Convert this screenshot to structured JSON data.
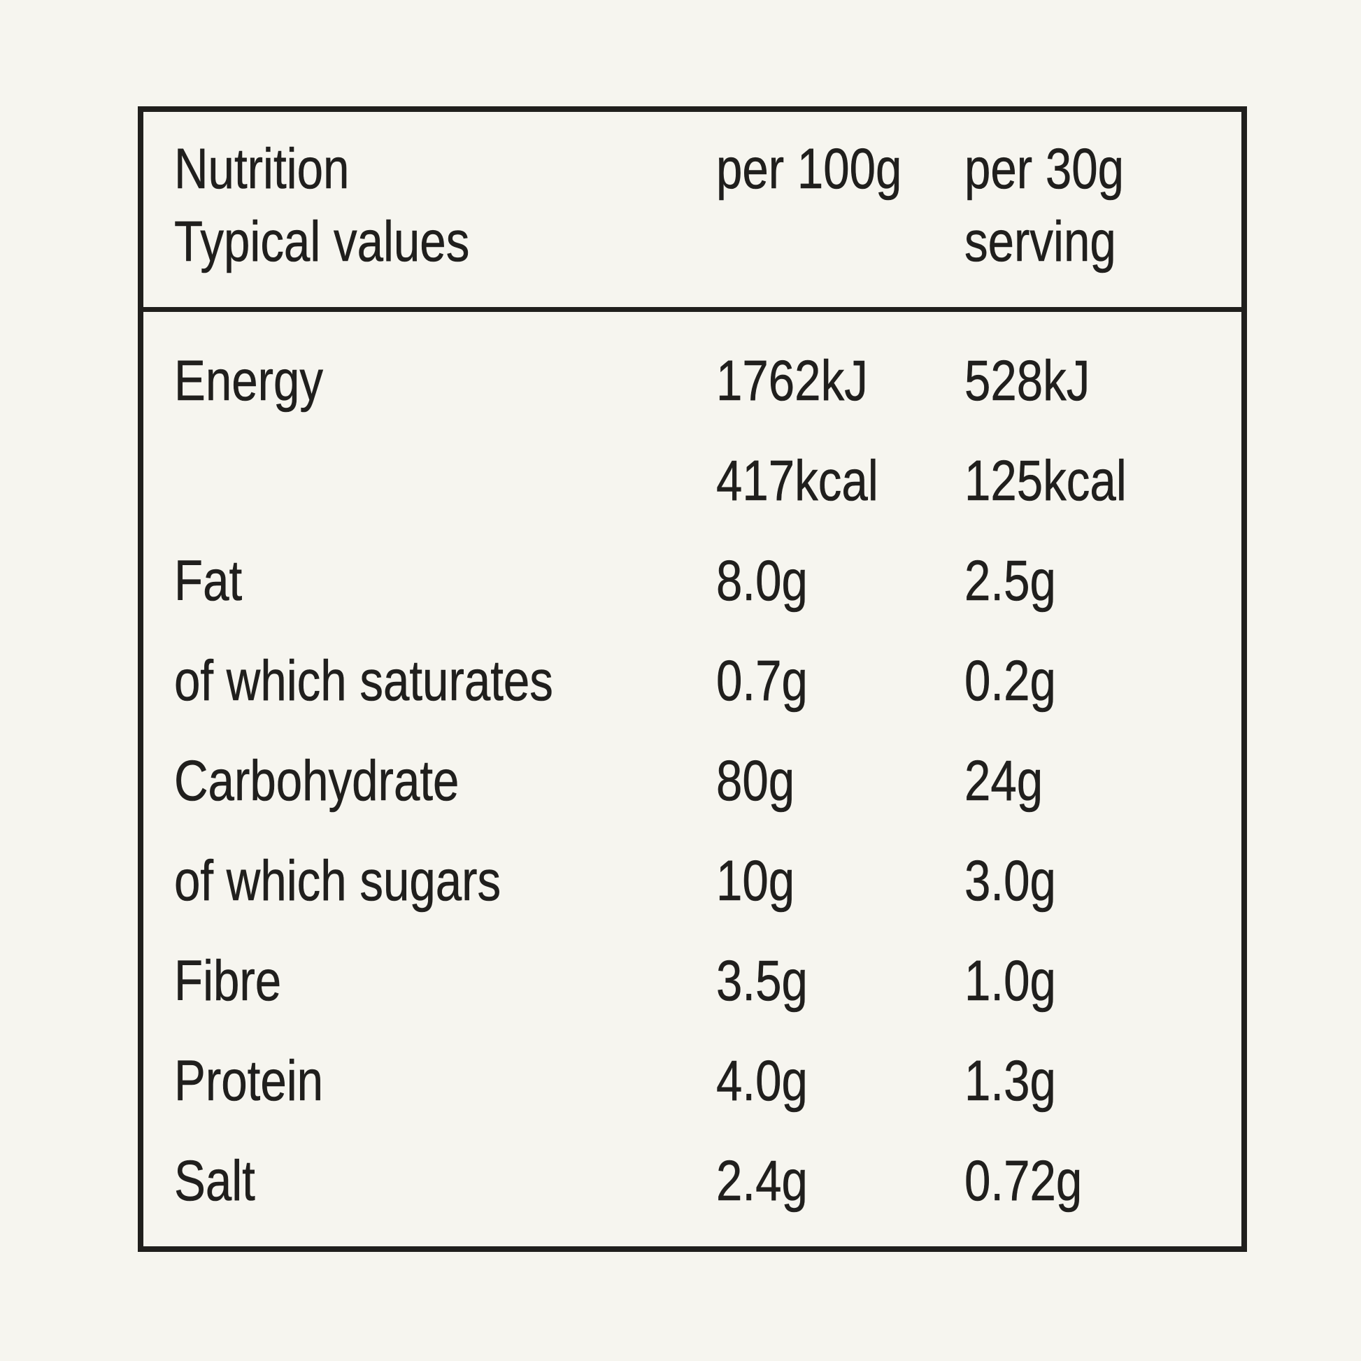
{
  "colors": {
    "background": "#f6f5ef",
    "ink": "#201f1d"
  },
  "table": {
    "header": {
      "label_line1": "Nutrition",
      "label_line2": "Typical values",
      "per100_label": "per 100g",
      "per30_label_line1": "per 30g",
      "per30_label_line2": "serving"
    },
    "rows": [
      {
        "label": "Energy",
        "per100": "1762kJ",
        "per30": "528kJ"
      },
      {
        "label": "",
        "per100": "417kcal",
        "per30": "125kcal"
      },
      {
        "label": "Fat",
        "per100": "8.0g",
        "per30": "2.5g"
      },
      {
        "label": "of which saturates",
        "per100": "0.7g",
        "per30": "0.2g"
      },
      {
        "label": "Carbohydrate",
        "per100": "80g",
        "per30": "24g"
      },
      {
        "label": "of which sugars",
        "per100": "10g",
        "per30": "3.0g"
      },
      {
        "label": "Fibre",
        "per100": "3.5g",
        "per30": "1.0g"
      },
      {
        "label": "Protein",
        "per100": "4.0g",
        "per30": "1.3g"
      },
      {
        "label": "Salt",
        "per100": "2.4g",
        "per30": "0.72g"
      }
    ]
  }
}
